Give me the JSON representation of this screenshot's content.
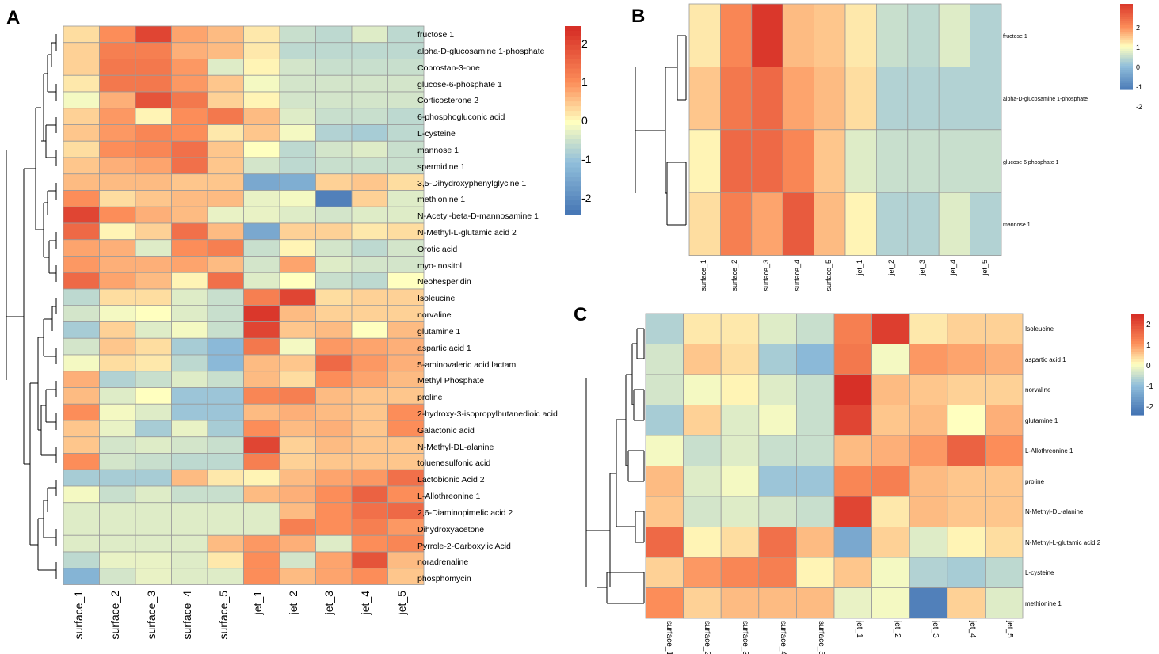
{
  "panels": {
    "A": "A",
    "B": "B",
    "C": "C"
  },
  "colorscale": {
    "neg": "#4575B4",
    "mid": "#FFFFBF",
    "pos": "#D73027",
    "negMid": "#91BFDB",
    "posMid": "#FC8D59"
  },
  "chart_data": [
    {
      "panel": "A",
      "type": "heatmap",
      "title": "",
      "columns": [
        "surface_1",
        "surface_2",
        "surface_3",
        "surface_4",
        "surface_5",
        "jet_1",
        "jet_2",
        "jet_3",
        "jet_4",
        "jet_5"
      ],
      "rows": [
        "fructose 1",
        "alpha-D-glucosamine 1-phosphate",
        "Coprostan-3-one",
        "glucose-6-phosphate 1",
        "Corticosterone 2",
        "6-phosphogluconic acid",
        "L-cysteine",
        "mannose 1",
        "spermidine 1",
        "3,5-Dihydroxyphenylglycine 1",
        "methionine 1",
        "N-Acetyl-beta-D-mannosamine 1",
        "N-Methyl-L-glutamic acid 2",
        "Orotic acid",
        "myo-inositol",
        "Neohesperidin",
        "Isoleucine",
        "norvaline",
        "glutamine 1",
        "aspartic acid 1",
        "5-aminovaleric acid lactam",
        "Methyl Phosphate",
        "proline",
        "2-hydroxy-3-isopropylbutanedioic acid",
        "Galactonic acid",
        "N-Methyl-DL-alanine",
        "toluenesulfonic acid",
        "Lactobionic Acid 2",
        "L-Allothreonine 1",
        "2,6-Diaminopimelic acid 2",
        "Dihydroxyacetone",
        "Pyrrole-2-Carboxylic Acid",
        "noradrenaline",
        "phosphomycin"
      ],
      "values": [
        [
          0.3,
          1.0,
          2.0,
          0.8,
          0.6,
          0.2,
          -0.5,
          -0.6,
          -0.3,
          -0.6
        ],
        [
          0.4,
          1.2,
          1.2,
          0.7,
          0.6,
          0.2,
          -0.6,
          -0.6,
          -0.6,
          -0.6
        ],
        [
          0.4,
          1.3,
          1.3,
          0.9,
          -0.3,
          0.1,
          -0.4,
          -0.5,
          -0.5,
          -0.5
        ],
        [
          0.2,
          1.3,
          1.3,
          0.9,
          0.5,
          -0.1,
          -0.4,
          -0.4,
          -0.4,
          -0.4
        ],
        [
          -0.1,
          0.7,
          1.8,
          1.3,
          0.4,
          0.1,
          -0.4,
          -0.4,
          -0.4,
          -0.4
        ],
        [
          0.4,
          0.9,
          0.1,
          1.0,
          1.3,
          0.6,
          -0.3,
          -0.5,
          -0.5,
          -0.6
        ],
        [
          0.5,
          0.9,
          1.1,
          1.0,
          0.2,
          0.5,
          -0.1,
          -0.7,
          -0.8,
          -0.6
        ],
        [
          0.3,
          1.0,
          1.1,
          1.4,
          0.5,
          0.0,
          -0.6,
          -0.4,
          -0.3,
          -0.5
        ],
        [
          0.5,
          0.7,
          0.8,
          1.4,
          0.5,
          -0.4,
          -0.6,
          -0.5,
          -0.5,
          -0.5
        ],
        [
          0.6,
          0.6,
          0.6,
          0.5,
          0.5,
          -1.4,
          -1.3,
          0.4,
          0.5,
          0.3
        ],
        [
          1.0,
          0.3,
          0.5,
          0.6,
          0.6,
          -0.2,
          -0.1,
          -2.1,
          0.4,
          -0.3
        ],
        [
          2.0,
          1.0,
          0.7,
          0.6,
          -0.2,
          -0.2,
          -0.3,
          -0.4,
          -0.3,
          -0.3
        ],
        [
          1.5,
          0.1,
          0.4,
          1.4,
          0.6,
          -1.4,
          0.4,
          0.4,
          0.2,
          0.3
        ],
        [
          0.8,
          0.7,
          -0.3,
          1.0,
          1.2,
          -0.5,
          0.1,
          -0.4,
          -0.6,
          -0.4
        ],
        [
          0.9,
          0.7,
          0.7,
          0.8,
          0.6,
          -0.4,
          0.8,
          -0.3,
          -0.4,
          -0.4
        ],
        [
          1.5,
          0.8,
          0.6,
          0.1,
          1.4,
          -0.3,
          0.0,
          -0.5,
          -0.6,
          0.0
        ],
        [
          -0.6,
          0.3,
          0.3,
          -0.3,
          -0.5,
          1.2,
          2.0,
          0.3,
          0.4,
          0.4
        ],
        [
          -0.4,
          -0.1,
          0.0,
          -0.3,
          -0.5,
          2.2,
          0.6,
          0.4,
          0.4,
          0.4
        ],
        [
          -0.8,
          0.4,
          -0.3,
          -0.1,
          -0.5,
          2.0,
          0.5,
          0.6,
          0.0,
          0.6
        ],
        [
          -0.4,
          0.5,
          0.3,
          -0.8,
          -1.1,
          1.3,
          -0.1,
          0.9,
          0.8,
          0.7
        ],
        [
          -0.1,
          0.3,
          0.2,
          -0.6,
          -1.1,
          0.6,
          0.5,
          1.5,
          0.9,
          0.7
        ],
        [
          0.7,
          -0.7,
          -0.5,
          -0.3,
          -0.5,
          0.6,
          0.3,
          1.0,
          0.8,
          0.6
        ],
        [
          0.6,
          -0.3,
          0.0,
          -0.9,
          -0.9,
          1.1,
          1.2,
          0.6,
          0.5,
          0.5
        ],
        [
          1.0,
          -0.1,
          -0.3,
          -0.9,
          -0.9,
          0.6,
          0.7,
          0.6,
          0.5,
          1.0
        ],
        [
          0.5,
          -0.2,
          -0.8,
          -0.2,
          -0.8,
          1.0,
          0.6,
          0.7,
          0.5,
          1.0
        ],
        [
          0.5,
          -0.4,
          -0.3,
          -0.4,
          -0.5,
          2.0,
          0.4,
          0.6,
          0.5,
          0.5
        ],
        [
          1.0,
          -0.4,
          -0.5,
          -0.6,
          -0.6,
          1.2,
          0.4,
          0.5,
          0.5,
          0.5
        ],
        [
          -0.8,
          -0.8,
          -0.8,
          0.6,
          0.2,
          0.1,
          0.6,
          0.8,
          0.9,
          1.4
        ],
        [
          -0.1,
          -0.5,
          -0.3,
          -0.5,
          -0.5,
          0.6,
          0.7,
          1.0,
          1.6,
          1.0
        ],
        [
          -0.3,
          -0.3,
          -0.3,
          -0.3,
          -0.3,
          -0.3,
          0.6,
          1.0,
          1.4,
          1.5
        ],
        [
          -0.3,
          -0.3,
          -0.3,
          -0.3,
          -0.3,
          -0.3,
          1.2,
          1.0,
          1.2,
          0.9
        ],
        [
          -0.3,
          -0.3,
          -0.3,
          -0.3,
          0.6,
          0.9,
          0.7,
          -0.3,
          1.0,
          1.1
        ],
        [
          -0.6,
          -0.2,
          -0.2,
          -0.3,
          0.2,
          1.0,
          -0.4,
          0.8,
          1.8,
          0.6
        ],
        [
          -1.2,
          -0.4,
          -0.2,
          -0.3,
          -0.3,
          1.0,
          0.6,
          0.8,
          1.0,
          0.5
        ]
      ],
      "legend_ticks": [
        "2",
        "1",
        "0",
        "-1",
        "-2"
      ],
      "legend_range": [
        -2.3,
        2.4
      ],
      "xlabel": "",
      "ylabel": ""
    },
    {
      "panel": "B",
      "type": "heatmap",
      "title": "",
      "columns": [
        "surface_1",
        "surface_2",
        "surface_3",
        "surface_4",
        "surface_5",
        "jet_1",
        "jet_2",
        "jet_3",
        "jet_4",
        "jet_5"
      ],
      "rows": [
        "fructose 1",
        "alpha-D-glucosamine 1-phosphate",
        "glucose 6 phosphate 1",
        "mannose 1"
      ],
      "values": [
        [
          0.2,
          1.1,
          2.2,
          0.6,
          0.5,
          0.2,
          -0.5,
          -0.6,
          -0.3,
          -0.7
        ],
        [
          0.5,
          1.3,
          1.5,
          0.8,
          0.6,
          0.3,
          -0.7,
          -0.7,
          -0.7,
          -0.7
        ],
        [
          0.1,
          1.5,
          1.5,
          1.1,
          0.5,
          -0.3,
          -0.5,
          -0.5,
          -0.5,
          -0.5
        ],
        [
          0.3,
          1.2,
          0.8,
          1.7,
          0.6,
          0.1,
          -0.7,
          -0.7,
          -0.3,
          -0.7
        ]
      ],
      "legend_ticks": [
        "2",
        "1",
        "0",
        "-1",
        "-2"
      ],
      "legend_range": [
        -2.2,
        2.2
      ],
      "xlabel": "",
      "ylabel": ""
    },
    {
      "panel": "C",
      "type": "heatmap",
      "title": "",
      "columns": [
        "surface_1",
        "surface_2",
        "surface_3",
        "surface_4",
        "surface_5",
        "jet_1",
        "jet_2",
        "jet_3",
        "jet_4",
        "jet_5"
      ],
      "rows": [
        "Isoleucine",
        "aspartic acid 1",
        "norvaline",
        "glutamine 1",
        "L-Allothreonine 1",
        "proline",
        "N-Methyl-DL-alanine",
        "N-Methyl-L-glutamic acid 2",
        "L-cysteine",
        "methionine 1"
      ],
      "values": [
        [
          -0.7,
          0.2,
          0.2,
          -0.3,
          -0.5,
          1.2,
          2.1,
          0.2,
          0.4,
          0.4
        ],
        [
          -0.4,
          0.5,
          0.3,
          -0.8,
          -1.1,
          1.3,
          -0.1,
          0.9,
          0.8,
          0.7
        ],
        [
          -0.4,
          -0.1,
          0.1,
          -0.3,
          -0.5,
          2.3,
          0.6,
          0.5,
          0.4,
          0.4
        ],
        [
          -0.8,
          0.4,
          -0.3,
          -0.1,
          -0.5,
          2.0,
          0.5,
          0.6,
          0.0,
          0.7
        ],
        [
          -0.1,
          -0.5,
          -0.3,
          -0.5,
          -0.5,
          0.6,
          0.7,
          0.9,
          1.6,
          1.0
        ],
        [
          0.6,
          -0.3,
          -0.1,
          -0.9,
          -0.9,
          1.1,
          1.2,
          0.6,
          0.5,
          0.5
        ],
        [
          0.5,
          -0.4,
          -0.3,
          -0.4,
          -0.5,
          2.0,
          0.2,
          0.6,
          0.5,
          0.5
        ],
        [
          1.5,
          0.1,
          0.3,
          1.4,
          0.6,
          -1.4,
          0.4,
          -0.3,
          0.1,
          0.3
        ],
        [
          0.4,
          0.9,
          1.1,
          1.2,
          0.1,
          0.5,
          -0.1,
          -0.7,
          -0.8,
          -0.6
        ],
        [
          1.0,
          0.4,
          0.6,
          0.6,
          0.6,
          -0.2,
          -0.1,
          -2.1,
          0.4,
          -0.3
        ]
      ],
      "legend_ticks": [
        "2",
        "1",
        "0",
        "-1",
        "-2"
      ],
      "legend_range": [
        -2.4,
        2.4
      ],
      "xlabel": "",
      "ylabel": ""
    }
  ]
}
